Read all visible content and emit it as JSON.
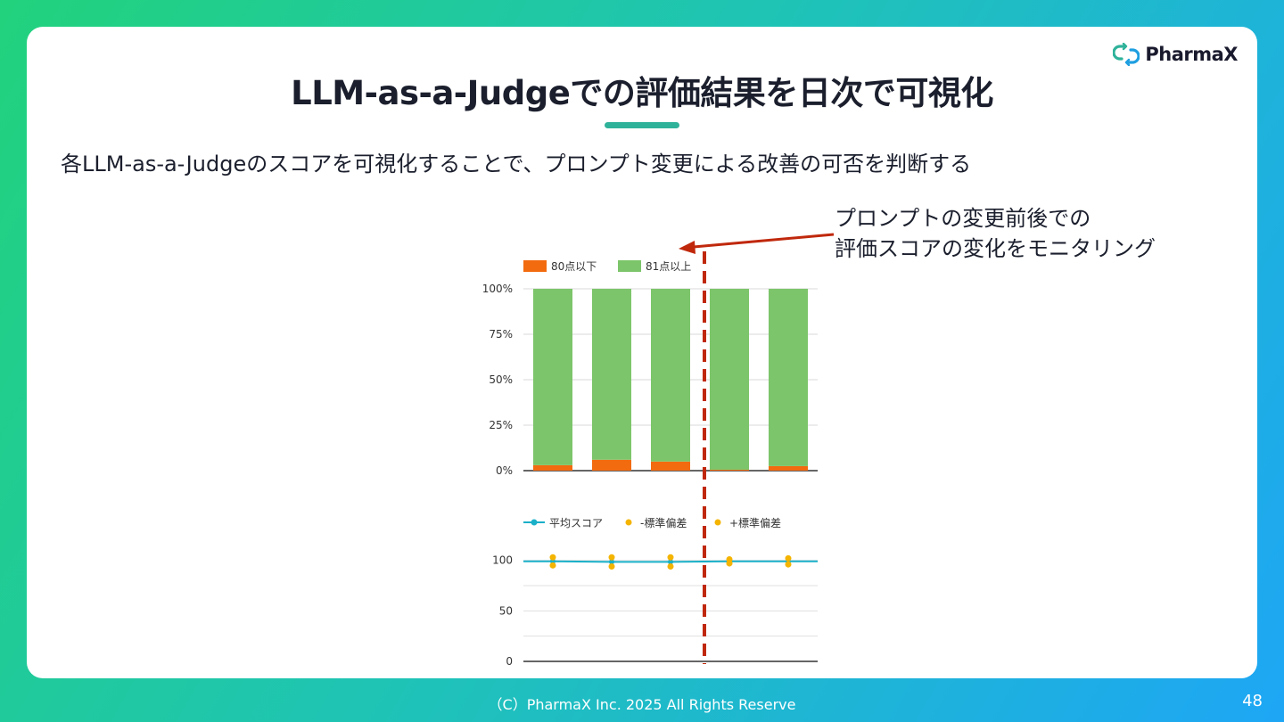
{
  "slide": {
    "logo_text": "PharmaX",
    "title": "LLM-as-a-Judgeでの評価結果を日次で可視化",
    "subtitle": "各LLM-as-a-Judgeのスコアを可視化することで、プロンプト変更による改善の可否を判断する",
    "annotation": "プロンプトの変更前後での\n評価スコアの変化をモニタリング",
    "footer": "（C）PharmaX Inc. 2025  All Rights Reserve",
    "page_number": "48"
  },
  "colors": {
    "brand_teal": "#2fb29a",
    "orange": "#f26b0f",
    "green": "#7cc56a",
    "cyan_line": "#1ab0c8",
    "std_dots": "#f4b400",
    "marker_red": "#c0280c"
  },
  "chart_data": [
    {
      "type": "bar",
      "stacked": true,
      "legend": [
        "80点以下",
        "81点以上"
      ],
      "legend_position": "top-left",
      "y_ticks": [
        "100%",
        "75%",
        "50%",
        "25%",
        "0%"
      ],
      "ylim": [
        0,
        100
      ],
      "grid": true,
      "series": [
        {
          "name": "80点以下",
          "values": [
            3,
            6,
            5,
            0.5,
            2.5
          ]
        },
        {
          "name": "81点以上",
          "values": [
            97,
            94,
            95,
            99.5,
            97.5
          ]
        }
      ],
      "n_categories": 5
    },
    {
      "type": "line",
      "legend": [
        "平均スコア",
        "-標準偏差",
        "+標準偏差"
      ],
      "legend_position": "top-left",
      "y_ticks": [
        "100",
        "50",
        "0"
      ],
      "ylim": [
        0,
        120
      ],
      "grid": true,
      "series": [
        {
          "name": "平均スコア",
          "values": [
            99,
            98.5,
            98.5,
            99,
            99
          ]
        },
        {
          "name": "-標準偏差",
          "values": [
            95,
            94,
            94,
            97,
            96
          ]
        },
        {
          "name": "+標準偏差",
          "values": [
            103,
            103,
            103,
            101,
            102
          ]
        }
      ]
    }
  ]
}
